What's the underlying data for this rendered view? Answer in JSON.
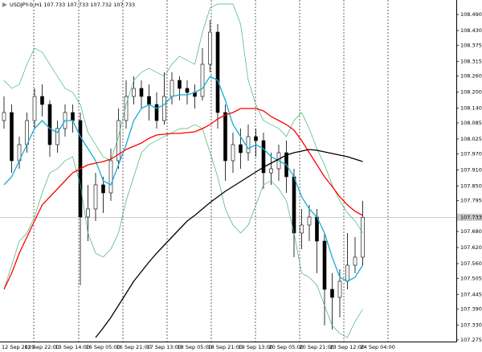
{
  "chart_data": {
    "type": "candlestick",
    "title": "USDJPY-b,H1  107.733 107.733 107.732 107.733",
    "categories": [
      "12 Sep 2019",
      null,
      null,
      "12 Sep 22:00",
      null,
      null,
      null,
      "13 Sep 14:00",
      null,
      null,
      null,
      "16 Sep 05:00",
      null,
      null,
      null,
      "16 Sep 21:00",
      null,
      null,
      null,
      "17 Sep 13:00",
      null,
      null,
      null,
      "18 Sep 05:00",
      null,
      null,
      null,
      "18 Sep 21:00",
      null,
      null,
      null,
      "19 Sep 13:00",
      null,
      null,
      null,
      "20 Sep 05:00",
      null,
      null,
      null,
      "20 Sep 21:00",
      null,
      null,
      null,
      "23 Sep 12:00",
      null,
      null,
      null,
      "24 Sep 04:00"
    ],
    "open": [
      108.094,
      108.124,
      107.944,
      108.004,
      108.094,
      108.184,
      108.154,
      108.004,
      108.064,
      108.124,
      108.094,
      107.734,
      107.764,
      107.854,
      107.824,
      107.944,
      108.094,
      108.184,
      108.214,
      108.184,
      108.154,
      108.094,
      108.184,
      108.244,
      108.214,
      108.199,
      108.184,
      108.304,
      108.424,
      108.124,
      107.944,
      108.004,
      107.974,
      108.034,
      108.019,
      107.899,
      107.914,
      107.974,
      107.884,
      107.674,
      107.704,
      107.734,
      107.644,
      107.464,
      107.434,
      107.494,
      107.554,
      107.584
    ],
    "high": [
      108.184,
      108.154,
      108.034,
      108.124,
      108.214,
      108.229,
      108.169,
      108.094,
      108.154,
      108.154,
      108.124,
      107.854,
      107.899,
      107.884,
      107.989,
      108.139,
      108.244,
      108.259,
      108.244,
      108.229,
      108.199,
      108.274,
      108.274,
      108.259,
      108.244,
      108.229,
      108.364,
      108.469,
      108.454,
      108.154,
      108.049,
      108.064,
      108.079,
      108.064,
      108.049,
      107.974,
      108.004,
      108.019,
      107.914,
      107.764,
      107.779,
      107.764,
      107.674,
      107.524,
      107.539,
      107.674,
      107.659,
      107.794
    ],
    "low": [
      108.064,
      107.899,
      107.914,
      107.974,
      108.064,
      108.109,
      107.959,
      107.974,
      108.034,
      108.049,
      107.479,
      107.644,
      107.719,
      107.749,
      107.794,
      107.914,
      108.064,
      108.154,
      108.139,
      108.094,
      108.064,
      108.079,
      108.154,
      108.169,
      108.154,
      108.139,
      108.169,
      108.274,
      108.064,
      107.869,
      107.899,
      107.914,
      107.944,
      107.959,
      107.839,
      107.854,
      107.869,
      107.824,
      107.584,
      107.614,
      107.644,
      107.524,
      107.329,
      107.314,
      107.359,
      107.464,
      107.524,
      107.554
    ],
    "close": [
      108.124,
      107.944,
      108.004,
      108.094,
      108.184,
      108.154,
      108.004,
      108.064,
      108.124,
      108.094,
      107.734,
      107.764,
      107.854,
      107.824,
      107.944,
      108.094,
      108.184,
      108.214,
      108.184,
      108.154,
      108.094,
      108.184,
      108.244,
      108.214,
      108.199,
      108.184,
      108.304,
      108.424,
      108.124,
      107.944,
      108.004,
      107.974,
      108.034,
      108.019,
      107.899,
      107.914,
      107.974,
      107.884,
      107.674,
      107.704,
      107.734,
      107.644,
      107.464,
      107.434,
      107.494,
      107.554,
      107.584,
      107.733
    ],
    "up_color": "#ffffff",
    "down_color": "#000000",
    "wick_color": "#000000",
    "lines": [
      {
        "color": "#3cb371",
        "values": [
          108.244,
          108.214,
          108.229,
          108.304,
          108.364,
          108.349,
          108.304,
          108.259,
          108.214,
          108.199,
          108.154,
          108.049,
          108.004,
          107.959,
          107.944,
          108.034,
          108.154,
          108.244,
          108.274,
          108.289,
          108.274,
          108.259,
          108.304,
          108.334,
          108.319,
          108.304,
          108.424,
          108.514,
          108.529,
          108.529,
          108.529,
          108.454,
          108.244,
          108.154,
          108.094,
          108.079,
          108.064,
          108.034,
          108.094,
          108.124,
          108.064,
          107.989,
          107.929,
          107.854,
          107.794,
          107.749,
          107.719,
          107.674
        ]
      },
      {
        "color": "#3cb371",
        "values": [
          107.464,
          107.554,
          107.644,
          107.674,
          107.734,
          107.824,
          107.899,
          107.914,
          107.944,
          107.959,
          107.854,
          107.674,
          107.599,
          107.584,
          107.614,
          107.674,
          107.794,
          107.884,
          107.974,
          108.004,
          108.019,
          108.034,
          108.049,
          108.064,
          108.064,
          108.079,
          108.064,
          107.974,
          107.884,
          107.764,
          107.704,
          107.674,
          107.704,
          107.779,
          107.854,
          107.869,
          107.839,
          107.794,
          107.674,
          107.524,
          107.509,
          107.479,
          107.404,
          107.329,
          107.299,
          107.284,
          107.344,
          107.389
        ]
      },
      {
        "color": "#17aed0",
        "values": [
          107.854,
          107.884,
          107.944,
          108.004,
          108.064,
          108.094,
          108.064,
          108.049,
          108.094,
          108.094,
          108.034,
          107.989,
          107.944,
          107.869,
          107.854,
          107.929,
          108.004,
          108.094,
          108.139,
          108.154,
          108.139,
          108.154,
          108.184,
          108.19,
          108.19,
          108.199,
          108.214,
          108.259,
          108.244,
          108.169,
          108.079,
          108.034,
          107.989,
          108.004,
          107.989,
          107.959,
          107.944,
          107.929,
          107.884,
          107.809,
          107.764,
          107.734,
          107.674,
          107.584,
          107.509,
          107.494,
          107.509,
          107.554
        ]
      },
      {
        "color": "#ff0000",
        "values": [
          107.464,
          107.524,
          107.599,
          107.659,
          107.719,
          107.779,
          107.809,
          107.839,
          107.869,
          107.899,
          107.914,
          107.929,
          107.935,
          107.941,
          107.95,
          107.968,
          107.986,
          107.998,
          108.01,
          108.028,
          108.04,
          108.043,
          108.046,
          108.046,
          108.049,
          108.052,
          108.064,
          108.079,
          108.1,
          108.115,
          108.124,
          108.139,
          108.139,
          108.139,
          108.13,
          108.109,
          108.094,
          108.079,
          108.058,
          108.019,
          107.974,
          107.929,
          107.884,
          107.848,
          107.809,
          107.779,
          107.755,
          107.74
        ]
      },
      {
        "color": "#000000",
        "values": [
          null,
          null,
          null,
          null,
          null,
          null,
          null,
          null,
          null,
          null,
          null,
          null,
          107.284,
          107.32,
          107.359,
          107.404,
          107.449,
          107.494,
          107.53,
          107.566,
          107.599,
          107.629,
          107.659,
          107.689,
          107.719,
          107.74,
          107.764,
          107.788,
          107.809,
          107.83,
          107.848,
          107.866,
          107.884,
          107.902,
          107.92,
          107.935,
          107.95,
          107.965,
          107.974,
          107.98,
          107.986,
          107.983,
          107.977,
          107.971,
          107.965,
          107.959,
          107.95,
          107.941
        ]
      }
    ],
    "last_price": 107.733,
    "ylim": [
      107.269,
      108.544
    ],
    "yticks": [
      {
        "value": 108.49,
        "label": "108.490"
      },
      {
        "value": 108.43,
        "label": "108.430"
      },
      {
        "value": 108.375,
        "label": "108.375"
      },
      {
        "value": 108.315,
        "label": "108.315"
      },
      {
        "value": 108.26,
        "label": "108.260"
      },
      {
        "value": 108.2,
        "label": "108.200"
      },
      {
        "value": 108.14,
        "label": "108.140"
      },
      {
        "value": 108.085,
        "label": "108.085"
      },
      {
        "value": 108.025,
        "label": "108.025"
      },
      {
        "value": 107.97,
        "label": "107.970"
      },
      {
        "value": 107.91,
        "label": "107.910"
      },
      {
        "value": 107.85,
        "label": "107.850"
      },
      {
        "value": 107.795,
        "label": "107.795"
      },
      {
        "value": 107.68,
        "label": "107.680"
      },
      {
        "value": 107.62,
        "label": "107.620"
      },
      {
        "value": 107.56,
        "label": "107.560"
      },
      {
        "value": 107.505,
        "label": "107.505"
      },
      {
        "value": 107.445,
        "label": "107.445"
      },
      {
        "value": 107.39,
        "label": "107.390"
      },
      {
        "value": 107.33,
        "label": "107.330"
      },
      {
        "value": 107.275,
        "label": "107.275"
      }
    ]
  }
}
